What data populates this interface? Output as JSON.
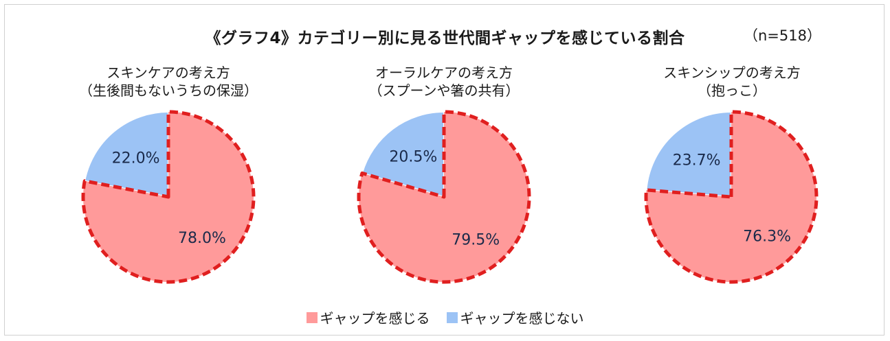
{
  "title": "《グラフ4》カテゴリー別に見る世代間ギャップを感じている割合",
  "sample_size": "（n=518）",
  "colors": {
    "gap": "#ff9a9a",
    "nogap": "#9cc3f5",
    "dash": "#e01f1f"
  },
  "chart_data": [
    {
      "type": "pie",
      "title_line1": "スキンケアの考え方",
      "title_line2": "（生後間もないうちの保湿）",
      "categories": [
        "ギャップを感じる",
        "ギャップを感じない"
      ],
      "values": [
        78.0,
        22.0
      ],
      "labels": [
        "78.0%",
        "22.0%"
      ]
    },
    {
      "type": "pie",
      "title_line1": "オーラルケアの考え方",
      "title_line2": "（スプーンや箸の共有）",
      "categories": [
        "ギャップを感じる",
        "ギャップを感じない"
      ],
      "values": [
        79.5,
        20.5
      ],
      "labels": [
        "79.5%",
        "20.5%"
      ]
    },
    {
      "type": "pie",
      "title_line1": "スキンシップの考え方",
      "title_line2": "（抱っこ）",
      "categories": [
        "ギャップを感じる",
        "ギャップを感じない"
      ],
      "values": [
        76.3,
        23.7
      ],
      "labels": [
        "76.3%",
        "23.7%"
      ]
    }
  ],
  "legend": [
    {
      "label": "ギャップを感じる",
      "color": "#ff9a9a"
    },
    {
      "label": "ギャップを感じない",
      "color": "#9cc3f5"
    }
  ]
}
